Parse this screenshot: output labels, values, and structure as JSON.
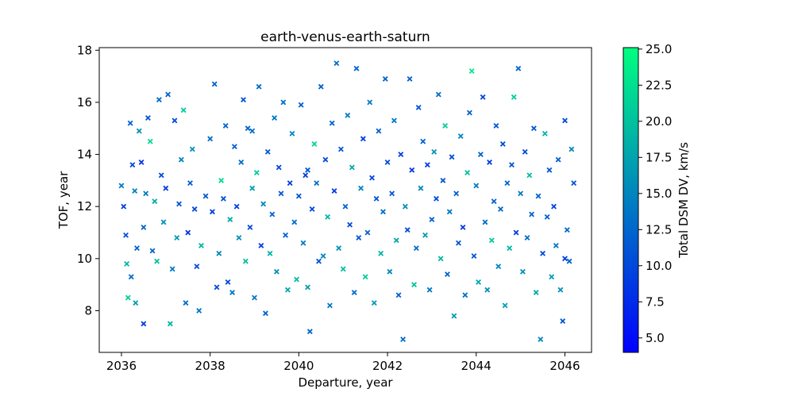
{
  "chart_data": {
    "type": "scatter",
    "title": "earth-venus-earth-saturn",
    "xlabel": "Departure, year",
    "ylabel": "TOF, year",
    "xlim": [
      2035.5,
      2046.6
    ],
    "ylim": [
      6.4,
      18.1
    ],
    "xticks": [
      2036,
      2038,
      2040,
      2042,
      2044,
      2046
    ],
    "yticks": [
      8,
      10,
      12,
      14,
      16,
      18
    ],
    "marker": "x",
    "grid": false,
    "colorbar": {
      "label": "Total DSM DV, km/s",
      "range": [
        4.0,
        25.1
      ],
      "ticks": [
        "5.0",
        "7.5",
        "10.0",
        "12.5",
        "15.0",
        "17.5",
        "20.0",
        "22.5",
        "25.0"
      ],
      "tick_values": [
        5.0,
        7.5,
        10.0,
        12.5,
        15.0,
        17.5,
        20.0,
        22.5,
        25.0
      ],
      "colormap": "winter",
      "color_low": "#0000ff",
      "color_high": "#00ff80"
    },
    "points": [
      [
        2036.0,
        12.8,
        14
      ],
      [
        2036.05,
        12.0,
        9
      ],
      [
        2036.1,
        10.9,
        11
      ],
      [
        2036.12,
        9.8,
        19
      ],
      [
        2036.15,
        8.5,
        21
      ],
      [
        2036.2,
        15.2,
        12
      ],
      [
        2036.22,
        9.3,
        13
      ],
      [
        2036.25,
        13.6,
        10
      ],
      [
        2036.3,
        12.6,
        15
      ],
      [
        2036.32,
        8.3,
        17
      ],
      [
        2036.4,
        14.9,
        16
      ],
      [
        2036.45,
        13.7,
        8
      ],
      [
        2036.5,
        11.2,
        12
      ],
      [
        2036.5,
        7.5,
        9
      ],
      [
        2036.55,
        12.5,
        14
      ],
      [
        2036.6,
        15.4,
        11
      ],
      [
        2036.65,
        14.5,
        22
      ],
      [
        2036.7,
        10.3,
        12
      ],
      [
        2036.75,
        12.2,
        18
      ],
      [
        2036.8,
        9.9,
        20
      ],
      [
        2036.85,
        16.1,
        13
      ],
      [
        2036.9,
        13.2,
        10
      ],
      [
        2036.95,
        11.4,
        16
      ],
      [
        2037.0,
        12.7,
        9
      ],
      [
        2037.05,
        16.3,
        12
      ],
      [
        2037.1,
        7.5,
        19
      ],
      [
        2037.15,
        9.6,
        14
      ],
      [
        2037.2,
        15.3,
        10
      ],
      [
        2037.25,
        10.8,
        17
      ],
      [
        2037.3,
        12.1,
        11
      ],
      [
        2037.35,
        13.8,
        15
      ],
      [
        2037.4,
        15.7,
        21
      ],
      [
        2037.45,
        8.3,
        13
      ],
      [
        2037.5,
        11.0,
        8
      ],
      [
        2037.55,
        12.9,
        12
      ],
      [
        2037.6,
        14.2,
        16
      ],
      [
        2037.7,
        9.7,
        10
      ],
      [
        2037.75,
        8.0,
        14
      ],
      [
        2037.8,
        10.5,
        19
      ],
      [
        2037.9,
        12.4,
        11
      ],
      [
        2038.0,
        14.6,
        13
      ],
      [
        2038.05,
        11.8,
        9
      ],
      [
        2038.1,
        16.7,
        12
      ],
      [
        2038.15,
        8.9,
        10
      ],
      [
        2038.2,
        10.2,
        15
      ],
      [
        2038.25,
        13.0,
        22
      ],
      [
        2038.3,
        12.3,
        11
      ],
      [
        2038.35,
        15.1,
        12
      ],
      [
        2038.4,
        9.1,
        10
      ],
      [
        2038.45,
        11.5,
        18
      ],
      [
        2038.5,
        8.7,
        14
      ],
      [
        2038.55,
        14.3,
        12
      ],
      [
        2038.6,
        12.0,
        9
      ],
      [
        2038.65,
        10.8,
        16
      ],
      [
        2038.7,
        13.7,
        13
      ],
      [
        2038.75,
        16.1,
        11
      ],
      [
        2038.8,
        9.9,
        20
      ],
      [
        2038.85,
        15.0,
        12
      ],
      [
        2038.9,
        11.2,
        10
      ],
      [
        2038.95,
        12.7,
        17
      ],
      [
        2039.0,
        8.5,
        14
      ],
      [
        2039.05,
        13.3,
        21
      ],
      [
        2039.1,
        16.6,
        13
      ],
      [
        2039.15,
        10.5,
        9
      ],
      [
        2039.2,
        12.1,
        15
      ],
      [
        2039.25,
        7.9,
        12
      ],
      [
        2039.3,
        14.1,
        11
      ],
      [
        2039.35,
        10.2,
        19
      ],
      [
        2039.4,
        11.7,
        12
      ],
      [
        2039.45,
        15.4,
        14
      ],
      [
        2039.5,
        9.5,
        16
      ],
      [
        2039.55,
        13.5,
        10
      ],
      [
        2039.6,
        12.5,
        11
      ],
      [
        2039.65,
        16.0,
        13
      ],
      [
        2039.7,
        10.9,
        12
      ],
      [
        2039.75,
        8.8,
        18
      ],
      [
        2039.8,
        12.9,
        9
      ],
      [
        2039.85,
        14.8,
        15
      ],
      [
        2039.9,
        11.4,
        13
      ],
      [
        2039.95,
        9.2,
        20
      ],
      [
        2040.0,
        12.4,
        11
      ],
      [
        2040.05,
        15.9,
        12
      ],
      [
        2040.1,
        10.6,
        14
      ],
      [
        2040.15,
        13.2,
        9
      ],
      [
        2040.2,
        8.9,
        17
      ],
      [
        2040.25,
        7.2,
        12
      ],
      [
        2040.3,
        11.9,
        10
      ],
      [
        2040.35,
        14.4,
        21
      ],
      [
        2040.4,
        12.9,
        13
      ],
      [
        2040.45,
        9.9,
        11
      ],
      [
        2040.5,
        16.6,
        12
      ],
      [
        2040.55,
        10.1,
        15
      ],
      [
        2040.6,
        13.8,
        10
      ],
      [
        2040.65,
        11.6,
        19
      ],
      [
        2040.7,
        8.2,
        14
      ],
      [
        2040.75,
        15.2,
        12
      ],
      [
        2040.8,
        12.6,
        9
      ],
      [
        2040.85,
        17.5,
        13
      ],
      [
        2040.9,
        10.4,
        16
      ],
      [
        2040.95,
        14.2,
        11
      ],
      [
        2041.0,
        9.6,
        20
      ],
      [
        2041.05,
        12.0,
        12
      ],
      [
        2041.1,
        15.5,
        14
      ],
      [
        2041.15,
        11.3,
        10
      ],
      [
        2041.2,
        13.5,
        18
      ],
      [
        2041.25,
        8.7,
        13
      ],
      [
        2041.3,
        17.3,
        12
      ],
      [
        2041.35,
        10.8,
        11
      ],
      [
        2041.4,
        12.7,
        15
      ],
      [
        2041.45,
        14.6,
        9
      ],
      [
        2041.5,
        9.3,
        21
      ],
      [
        2041.55,
        11.0,
        12
      ],
      [
        2041.6,
        16.0,
        14
      ],
      [
        2041.65,
        13.1,
        10
      ],
      [
        2041.7,
        8.3,
        17
      ],
      [
        2041.75,
        12.3,
        11
      ],
      [
        2041.8,
        14.9,
        12
      ],
      [
        2041.85,
        10.2,
        19
      ],
      [
        2041.9,
        11.8,
        13
      ],
      [
        2041.95,
        16.9,
        12
      ],
      [
        2042.0,
        13.7,
        10
      ],
      [
        2042.05,
        9.5,
        15
      ],
      [
        2042.1,
        12.5,
        11
      ],
      [
        2042.15,
        15.3,
        14
      ],
      [
        2042.2,
        10.7,
        18
      ],
      [
        2042.25,
        8.6,
        12
      ],
      [
        2042.3,
        14.0,
        9
      ],
      [
        2042.35,
        6.9,
        13
      ],
      [
        2042.4,
        12.0,
        16
      ],
      [
        2042.45,
        11.1,
        10
      ],
      [
        2042.5,
        16.9,
        12
      ],
      [
        2042.55,
        13.4,
        9
      ],
      [
        2042.6,
        9.0,
        20
      ],
      [
        2042.65,
        10.4,
        13
      ],
      [
        2042.7,
        15.8,
        11
      ],
      [
        2042.75,
        12.7,
        15
      ],
      [
        2042.8,
        14.5,
        12
      ],
      [
        2042.85,
        10.9,
        17
      ],
      [
        2042.9,
        13.6,
        9
      ],
      [
        2042.95,
        8.8,
        14
      ],
      [
        2043.0,
        11.5,
        12
      ],
      [
        2043.05,
        14.1,
        16
      ],
      [
        2043.1,
        12.3,
        10
      ],
      [
        2043.15,
        16.3,
        13
      ],
      [
        2043.2,
        10.0,
        19
      ],
      [
        2043.25,
        13.0,
        11
      ],
      [
        2043.3,
        15.1,
        21
      ],
      [
        2043.35,
        9.4,
        12
      ],
      [
        2043.4,
        11.8,
        14
      ],
      [
        2043.45,
        13.9,
        10
      ],
      [
        2043.5,
        7.8,
        17
      ],
      [
        2043.55,
        12.5,
        12
      ],
      [
        2043.6,
        10.6,
        11
      ],
      [
        2043.65,
        14.7,
        15
      ],
      [
        2043.7,
        11.2,
        9
      ],
      [
        2043.75,
        8.6,
        13
      ],
      [
        2043.8,
        13.3,
        20
      ],
      [
        2043.85,
        15.6,
        12
      ],
      [
        2043.9,
        17.2,
        23
      ],
      [
        2043.95,
        10.1,
        11
      ],
      [
        2044.0,
        12.8,
        14
      ],
      [
        2044.05,
        9.1,
        18
      ],
      [
        2044.1,
        14.0,
        12
      ],
      [
        2044.15,
        16.2,
        10
      ],
      [
        2044.2,
        11.4,
        13
      ],
      [
        2044.25,
        8.8,
        16
      ],
      [
        2044.3,
        13.7,
        9
      ],
      [
        2044.35,
        10.7,
        21
      ],
      [
        2044.4,
        12.2,
        12
      ],
      [
        2044.45,
        15.1,
        11
      ],
      [
        2044.5,
        9.7,
        15
      ],
      [
        2044.55,
        11.9,
        13
      ],
      [
        2044.6,
        14.4,
        10
      ],
      [
        2044.65,
        8.2,
        17
      ],
      [
        2044.7,
        12.9,
        12
      ],
      [
        2044.75,
        10.4,
        19
      ],
      [
        2044.8,
        13.6,
        11
      ],
      [
        2044.85,
        16.2,
        21
      ],
      [
        2044.9,
        11.0,
        9
      ],
      [
        2044.95,
        17.3,
        12
      ],
      [
        2045.0,
        12.5,
        14
      ],
      [
        2045.05,
        9.5,
        16
      ],
      [
        2045.1,
        14.1,
        10
      ],
      [
        2045.15,
        10.8,
        13
      ],
      [
        2045.2,
        13.2,
        20
      ],
      [
        2045.25,
        11.7,
        12
      ],
      [
        2045.3,
        15.0,
        11
      ],
      [
        2045.35,
        8.7,
        18
      ],
      [
        2045.4,
        12.4,
        12
      ],
      [
        2045.45,
        6.9,
        15
      ],
      [
        2045.5,
        10.2,
        10
      ],
      [
        2045.55,
        14.8,
        19
      ],
      [
        2045.6,
        11.6,
        12
      ],
      [
        2045.65,
        13.4,
        11
      ],
      [
        2045.7,
        9.3,
        17
      ],
      [
        2045.75,
        12.0,
        9
      ],
      [
        2045.8,
        10.5,
        14
      ],
      [
        2045.85,
        13.8,
        12
      ],
      [
        2045.9,
        8.8,
        16
      ],
      [
        2045.95,
        7.6,
        11
      ],
      [
        2046.0,
        15.3,
        10
      ],
      [
        2046.05,
        11.1,
        13
      ],
      [
        2046.1,
        9.9,
        12
      ],
      [
        2046.15,
        14.2,
        15
      ],
      [
        2046.2,
        12.9,
        11
      ],
      [
        2046.0,
        10.0,
        9
      ],
      [
        2036.35,
        10.4,
        12
      ],
      [
        2037.65,
        11.9,
        10
      ],
      [
        2038.95,
        14.9,
        13
      ],
      [
        2040.2,
        13.4,
        11
      ]
    ]
  }
}
